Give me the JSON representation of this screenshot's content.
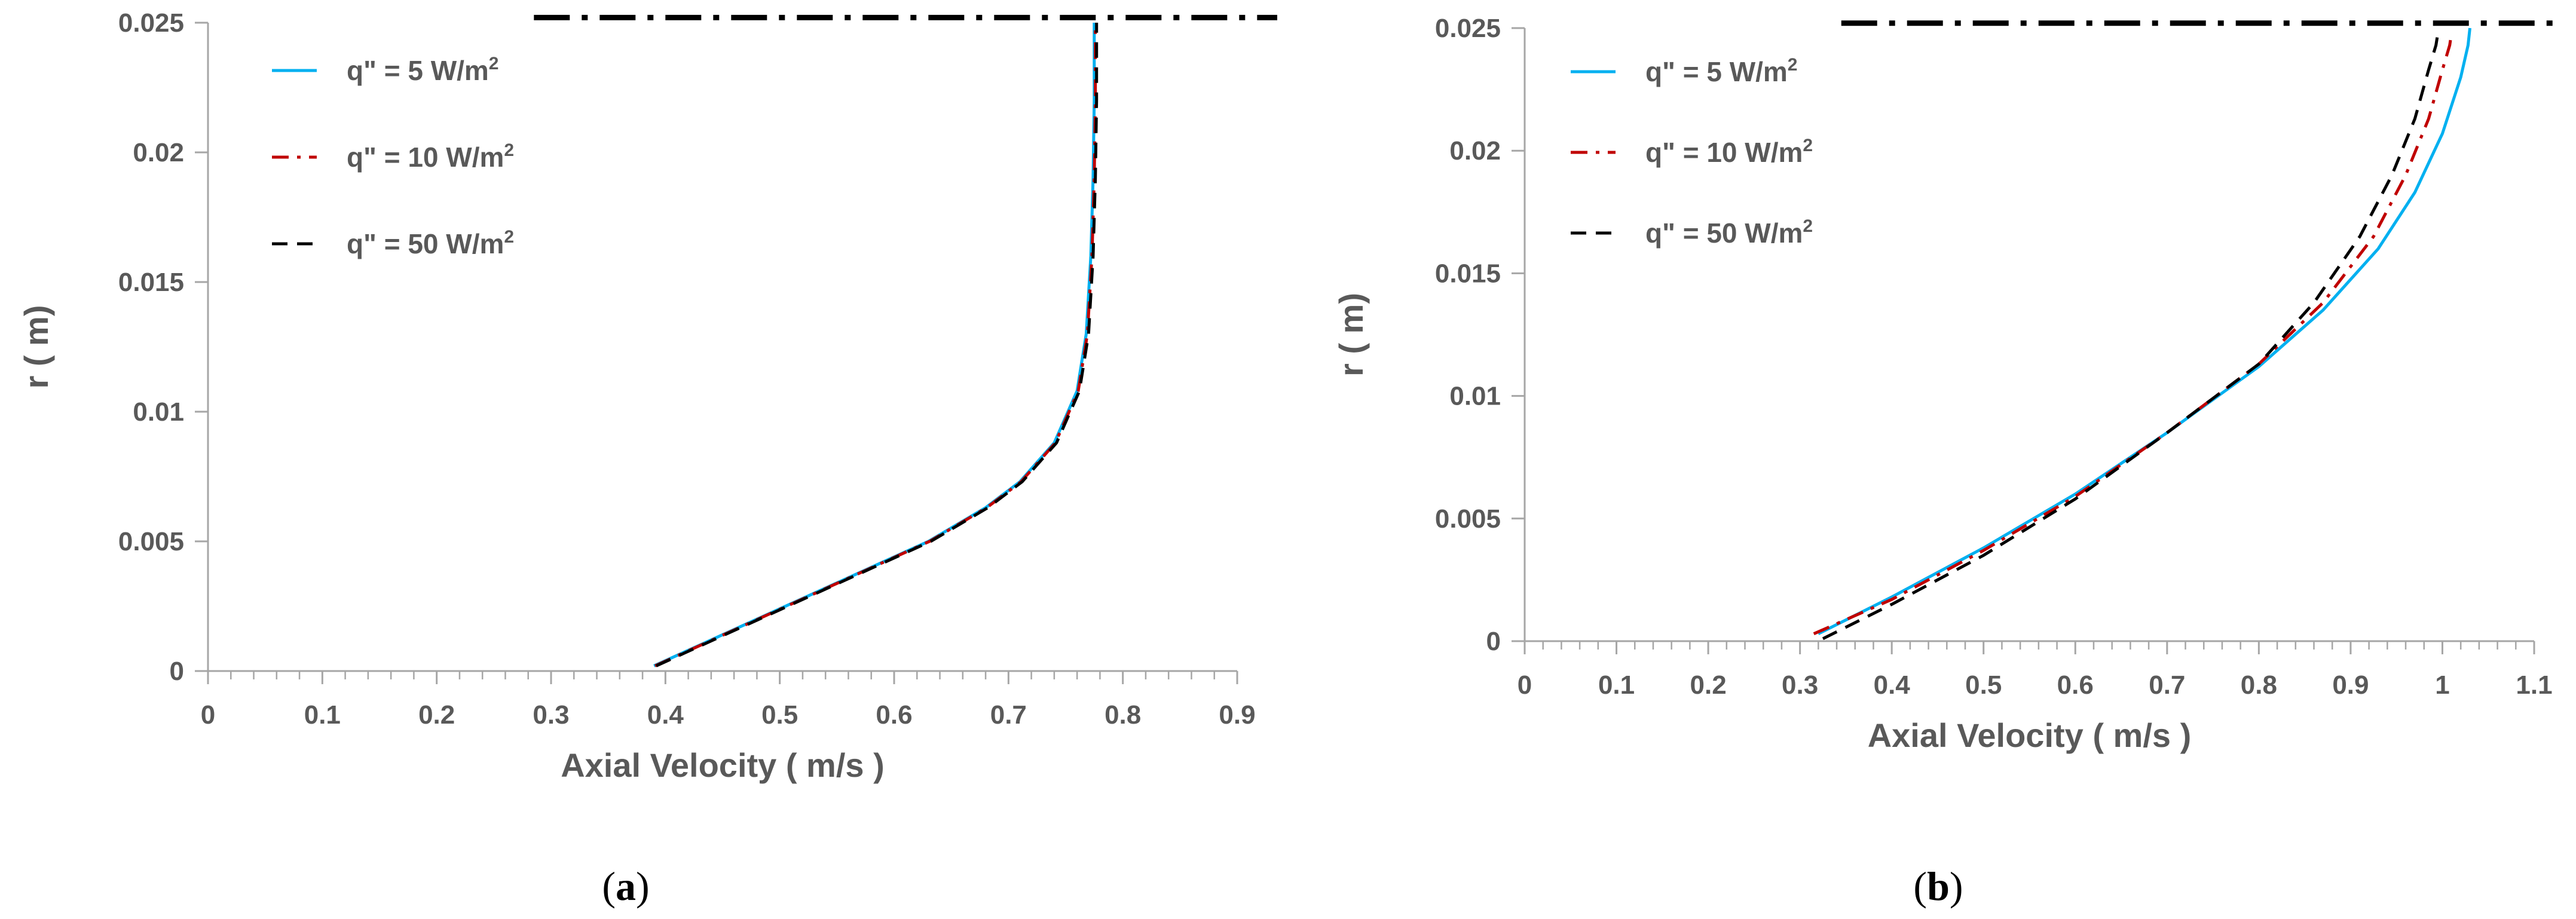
{
  "chart_data": [
    {
      "panel": "a",
      "type": "line",
      "xlabel": "Axial Velocity ( m/s )",
      "ylabel": "r  ( m)",
      "xlim": [
        0,
        0.9
      ],
      "ylim": [
        0,
        0.025
      ],
      "x_ticks": [
        "0",
        "0.1",
        "0.2",
        "0.3",
        "0.4",
        "0.5",
        "0.6",
        "0.7",
        "0.8",
        "0.9"
      ],
      "y_ticks": [
        "0",
        "0.005",
        "0.01",
        "0.015",
        "0.02",
        "0.025"
      ],
      "legend": {
        "position": "top-left",
        "entries": [
          {
            "label": "q\" = 5 W/m",
            "sup": "2"
          },
          {
            "label": "q\" = 10 W/m",
            "sup": "2"
          },
          {
            "label": "q\" = 50 W/m",
            "sup": "2"
          }
        ]
      },
      "wall_line": {
        "y": 0.0252,
        "x_range": [
          0.285,
          0.935
        ]
      },
      "series": [
        {
          "name": "q\" = 5 W/m2",
          "color": "#00b0f0",
          "style": "solid",
          "x": [
            0.39,
            0.43,
            0.48,
            0.53,
            0.58,
            0.63,
            0.68,
            0.71,
            0.74,
            0.76,
            0.768,
            0.772,
            0.774,
            0.775,
            0.775
          ],
          "y": [
            0.0002,
            0.001,
            0.002,
            0.003,
            0.004,
            0.005,
            0.0063,
            0.0073,
            0.0088,
            0.0108,
            0.013,
            0.016,
            0.019,
            0.022,
            0.025
          ]
        },
        {
          "name": "q\" = 10 W/m2",
          "color": "#c00000",
          "style": "dashdot",
          "x": [
            0.391,
            0.431,
            0.481,
            0.531,
            0.581,
            0.631,
            0.681,
            0.711,
            0.741,
            0.761,
            0.769,
            0.773,
            0.775,
            0.776,
            0.776
          ],
          "y": [
            0.0002,
            0.001,
            0.002,
            0.003,
            0.004,
            0.005,
            0.0063,
            0.0073,
            0.0088,
            0.0108,
            0.013,
            0.016,
            0.019,
            0.022,
            0.025
          ]
        },
        {
          "name": "q\" = 50 W/m2",
          "color": "#000000",
          "style": "dashed",
          "x": [
            0.392,
            0.432,
            0.482,
            0.532,
            0.582,
            0.632,
            0.682,
            0.712,
            0.742,
            0.762,
            0.77,
            0.774,
            0.776,
            0.777,
            0.777
          ],
          "y": [
            0.0002,
            0.001,
            0.002,
            0.003,
            0.004,
            0.005,
            0.0063,
            0.0073,
            0.0088,
            0.0108,
            0.013,
            0.016,
            0.019,
            0.022,
            0.025
          ]
        }
      ]
    },
    {
      "panel": "b",
      "type": "line",
      "xlabel": "Axial Velocity ( m/s )",
      "ylabel": "r  ( m)",
      "xlim": [
        0,
        1.1
      ],
      "ylim": [
        0,
        0.025
      ],
      "x_ticks": [
        "0",
        "0.1",
        "0.2",
        "0.3",
        "0.4",
        "0.5",
        "0.6",
        "0.7",
        "0.8",
        "0.9",
        "1",
        "1.1"
      ],
      "y_ticks": [
        "0",
        "0.005",
        "0.01",
        "0.015",
        "0.02",
        "0.025"
      ],
      "legend": {
        "position": "top-left",
        "entries": [
          {
            "label": "q\" = 5 W/m",
            "sup": "2"
          },
          {
            "label": "q\" = 10 W/m",
            "sup": "2"
          },
          {
            "label": "q\" = 50 W/m",
            "sup": "2"
          }
        ]
      },
      "wall_line": {
        "y": 0.0252,
        "x_range": [
          0.345,
          1.13
        ]
      },
      "series": [
        {
          "name": "q\" = 5 W/m2",
          "color": "#00b0f0",
          "style": "solid",
          "x": [
            0.32,
            0.4,
            0.5,
            0.6,
            0.7,
            0.8,
            0.87,
            0.93,
            0.97,
            1.0,
            1.02,
            1.028,
            1.03
          ],
          "y": [
            0.0003,
            0.0018,
            0.0038,
            0.006,
            0.0085,
            0.0112,
            0.0135,
            0.016,
            0.0183,
            0.0207,
            0.023,
            0.0243,
            0.025
          ]
        },
        {
          "name": "q\" = 10 W/m2",
          "color": "#c00000",
          "style": "dashdot",
          "x": [
            0.315,
            0.4,
            0.5,
            0.6,
            0.7,
            0.8,
            0.87,
            0.925,
            0.96,
            0.985,
            1.0,
            1.008,
            1.01
          ],
          "y": [
            0.0003,
            0.0017,
            0.0037,
            0.0059,
            0.0085,
            0.0113,
            0.0138,
            0.0165,
            0.019,
            0.0213,
            0.0233,
            0.0243,
            0.0248
          ]
        },
        {
          "name": "q\" = 50 W/m2",
          "color": "#000000",
          "style": "dashed",
          "x": [
            0.325,
            0.4,
            0.5,
            0.6,
            0.7,
            0.8,
            0.86,
            0.91,
            0.945,
            0.97,
            0.985,
            0.993,
            0.996
          ],
          "y": [
            0.0001,
            0.0015,
            0.0035,
            0.0058,
            0.0085,
            0.0113,
            0.0138,
            0.0165,
            0.019,
            0.0213,
            0.0233,
            0.0243,
            0.025
          ]
        }
      ]
    }
  ],
  "panels": [
    {
      "label_open": "(",
      "label_letter": "a",
      "label_close": ")"
    },
    {
      "label_open": "(",
      "label_letter": "b",
      "label_close": ")"
    }
  ]
}
